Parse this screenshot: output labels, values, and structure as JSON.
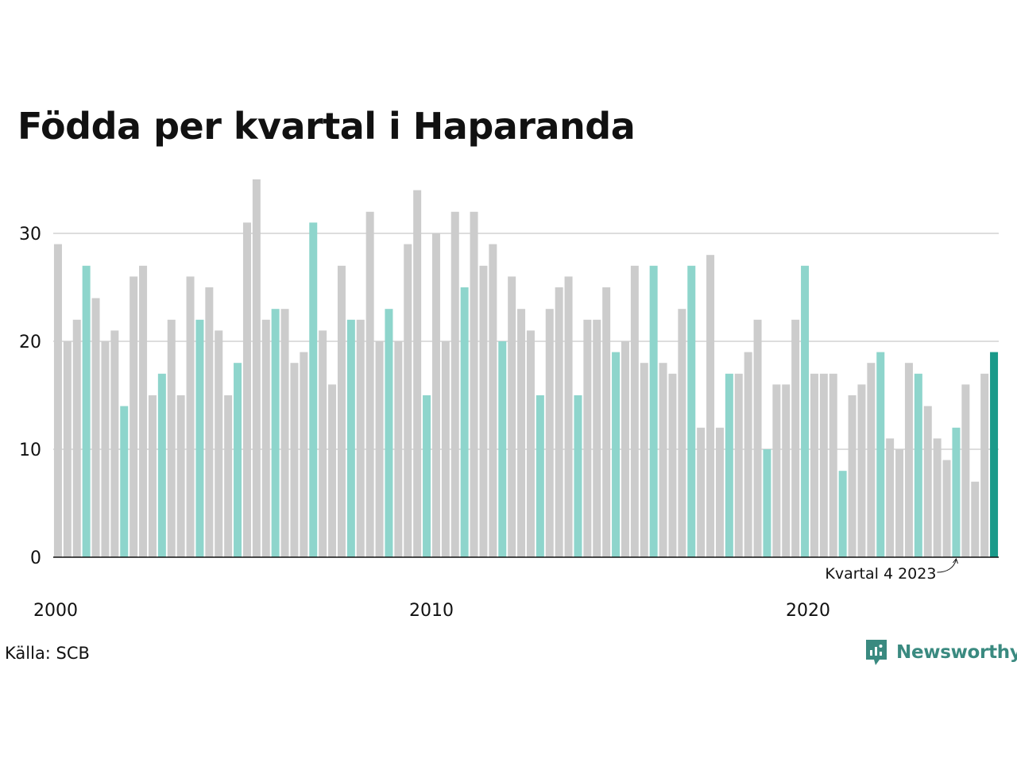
{
  "header": {
    "title": "Födda per kvartal i Haparanda"
  },
  "footer": {
    "source": "Källa: SCB",
    "brand": "Newsworthy"
  },
  "colors": {
    "gray": "#cccccc",
    "q4": "#8ed5cc",
    "latest": "#1a9a8a",
    "grid": "#dddddd",
    "axis": "#111111"
  },
  "icons": {
    "brand_logo": "newsworthy-logo-icon",
    "annotation_arrow": "curved-arrow-icon"
  },
  "chart_data": {
    "type": "bar",
    "title": "Födda per kvartal i Haparanda",
    "xlabel": "",
    "ylabel": "",
    "ylim": [
      0,
      35
    ],
    "yticks": [
      0,
      10,
      20,
      30
    ],
    "xtick_labels": [
      {
        "label": "2000",
        "year": 2000
      },
      {
        "label": "2010",
        "year": 2010
      },
      {
        "label": "2020",
        "year": 2020
      }
    ],
    "grid": true,
    "start_year": 2000,
    "highlight": "quarter 4 of each year; latest quarter in dark teal",
    "annotation": {
      "text": "Kvartal 4 2023",
      "year": 2023,
      "quarter": 4
    },
    "values": [
      29,
      20,
      22,
      27,
      24,
      20,
      21,
      14,
      26,
      27,
      15,
      17,
      22,
      15,
      26,
      22,
      25,
      21,
      15,
      18,
      31,
      35,
      22,
      23,
      23,
      18,
      19,
      31,
      21,
      16,
      27,
      22,
      22,
      32,
      20,
      23,
      20,
      29,
      34,
      15,
      30,
      20,
      32,
      25,
      32,
      27,
      29,
      20,
      26,
      23,
      21,
      15,
      23,
      25,
      26,
      15,
      22,
      22,
      25,
      19,
      20,
      27,
      18,
      27,
      18,
      17,
      23,
      27,
      12,
      28,
      12,
      17,
      17,
      19,
      22,
      10,
      16,
      16,
      22,
      27,
      17,
      17,
      17,
      8,
      15,
      16,
      18,
      19,
      11,
      10,
      18,
      17,
      14,
      11,
      9,
      12,
      16,
      7,
      17,
      19
    ]
  }
}
